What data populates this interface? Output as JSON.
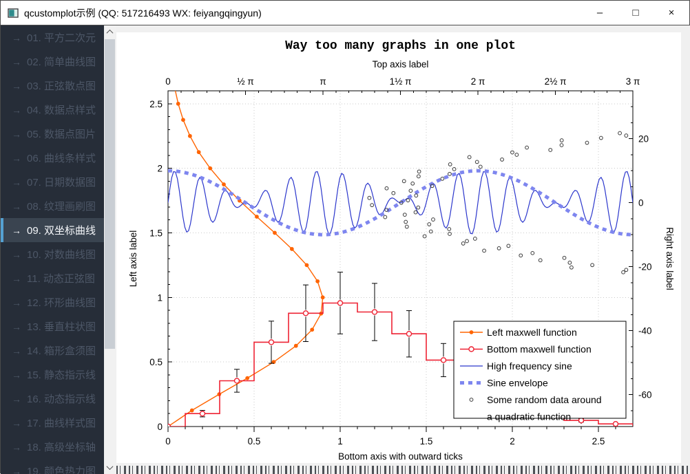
{
  "window": {
    "title": "qcustomplot示例 (QQ: 517216493 WX: feiyangqingyun)",
    "controls": {
      "minimize": "–",
      "maximize": "□",
      "close": "×"
    }
  },
  "sidebar": {
    "arrow_glyph": "→",
    "selected_index": 8,
    "items": [
      "01. 平方二次元",
      "02. 简单曲线图",
      "03. 正弦散点图",
      "04. 数据点样式",
      "05. 数据点图片",
      "06. 曲线条样式",
      "07. 日期数据图",
      "08. 纹理画刷图",
      "09. 双坐标曲线",
      "10. 对数曲线图",
      "11. 动态正弦图",
      "12. 环形曲线图",
      "13. 垂直柱状图",
      "14. 箱形盒须图",
      "15. 静态指示线",
      "16. 动态指示线",
      "17. 曲线样式图",
      "18. 高级坐标轴",
      "19. 颜色热力图"
    ]
  },
  "chart_data": {
    "type": "line",
    "title": "Way too many graphs in one plot",
    "grid": true,
    "legend_position": "bottom-right",
    "axes": {
      "bottom": {
        "label": "Bottom axis with outward ticks",
        "range": [
          0,
          2.7
        ],
        "tick_values": [
          0,
          0.5,
          1,
          1.5,
          2,
          2.5
        ],
        "tick_labels": [
          "0",
          "0.5",
          "1",
          "1.5",
          "2",
          "2.5"
        ],
        "ticks_outward": true
      },
      "left": {
        "label": "Left axis label",
        "range": [
          0,
          2.6
        ],
        "tick_values": [
          0,
          0.5,
          1,
          1.5,
          2,
          2.5
        ],
        "tick_labels": [
          "0",
          "0.5",
          "1",
          "1.5",
          "2",
          "2.5"
        ]
      },
      "top": {
        "label": "Top axis label",
        "range": [
          0,
          9.42477796
        ],
        "tick_values": [
          0,
          1.5707963,
          3.1415927,
          4.712389,
          6.2831853,
          7.8539816,
          9.424778
        ],
        "tick_labels": [
          "0",
          "½ π",
          "π",
          "1½ π",
          "2 π",
          "2½ π",
          "3 π"
        ]
      },
      "right": {
        "label": "Right axis label",
        "range": [
          -70,
          35
        ],
        "tick_values": [
          20,
          0,
          -20,
          -40,
          -60
        ],
        "tick_labels": [
          "20",
          "0",
          "-20",
          "-40",
          "-60"
        ]
      }
    },
    "series": [
      {
        "name": "Left maxwell function",
        "color": "#ff6400",
        "style": "line-with-discs",
        "key_axis": "left",
        "value_axis": "bottom",
        "note": "points are [bottom_value, left_key]",
        "points": [
          [
            0,
            0
          ],
          [
            0.1389,
            0.125
          ],
          [
            0.2973,
            0.25
          ],
          [
            0.4608,
            0.375
          ],
          [
            0.614,
            0.5
          ],
          [
            0.743,
            0.625
          ],
          [
            0.8369,
            0.75
          ],
          [
            0.8892,
            0.875
          ],
          [
            0.8987,
            1.0
          ],
          [
            0.8686,
            1.125
          ],
          [
            0.8058,
            1.25
          ],
          [
            0.7194,
            1.375
          ],
          [
            0.6199,
            1.5
          ],
          [
            0.5157,
            1.625
          ],
          [
            0.4153,
            1.75
          ],
          [
            0.324,
            1.875
          ],
          [
            0.2447,
            2.0
          ],
          [
            0.1787,
            2.125
          ],
          [
            0.1275,
            2.25
          ],
          [
            0.0879,
            2.375
          ],
          [
            0.059,
            2.5
          ],
          [
            0.0384,
            2.625
          ],
          [
            0.0243,
            2.75
          ],
          [
            0.015,
            2.875
          ],
          [
            0.009,
            3.0
          ]
        ]
      },
      {
        "name": "Bottom maxwell function",
        "color": "#ee2233",
        "style": "step-center-with-circles-and-errorbars",
        "key_axis": "bottom",
        "value_axis": "left",
        "error_factor": 0.25,
        "x": [
          0,
          0.2,
          0.4,
          0.6,
          0.8,
          1.0,
          1.2,
          1.4,
          1.6,
          1.8,
          2.0,
          2.2,
          2.4,
          2.6,
          2.8
        ],
        "y": [
          0,
          0.0999,
          0.3545,
          0.653,
          0.8774,
          0.9565,
          0.887,
          0.718,
          0.5145,
          0.3302,
          0.1905,
          0.0995,
          0.0472,
          0.0204,
          0.008
        ]
      },
      {
        "name": "High frequency sine",
        "color": "#2b36cc",
        "style": "line",
        "key_axis": "top",
        "value_axis": "right",
        "formula": "y = 10·sin(12x)·cos(x)",
        "amp": 10,
        "freq": 12,
        "x_max": 9.42477796,
        "n_points": 250
      },
      {
        "name": "Sine envelope",
        "color": "#7e86ef",
        "style": "thick-dotted-line",
        "key_axis": "top",
        "value_axis": "right",
        "formula": "y = 10·cos(x)",
        "amp": 10,
        "x_max": 9.42477796,
        "n_points": 150
      },
      {
        "name": "Some random data around a quadratic function",
        "color": "#3a3a3a",
        "style": "scatter-open-circles",
        "key_axis": "right",
        "value_axis": "top",
        "formula": "value = 4.58 + 0.01·key² + noise",
        "key_start": -24,
        "key_step": 0.75,
        "coef": 0.01,
        "offset": 4.58,
        "noise": [
          0.12,
          -0.34,
          0.45,
          -0.08,
          0.3,
          -0.5,
          0.22,
          0.05,
          -0.27,
          0.48,
          -0.15,
          0.33,
          -0.42,
          0.1,
          0.5,
          -0.22,
          0.04,
          0.38,
          -0.48,
          0.18,
          -0.06,
          0.44,
          -0.3,
          0.26,
          -0.12,
          0.52,
          -0.38,
          0.08,
          0.35,
          -0.2,
          0.47,
          -0.45,
          0.15,
          0.28,
          -0.52,
          0.4,
          -0.1,
          0.2,
          -0.35,
          0.5,
          0.02,
          -0.25,
          0.42,
          -0.18,
          0.32,
          -0.44,
          0.12,
          0.49,
          -0.3,
          0.06,
          0.37,
          -0.5,
          0.24,
          -0.08,
          0.45,
          -0.28,
          0.16,
          0.4,
          -0.4,
          0.1,
          0.3,
          -0.15,
          0.5,
          -0.05
        ]
      }
    ],
    "legend": {
      "entries": [
        "Left maxwell function",
        "Bottom maxwell function",
        "High frequency sine",
        "Sine envelope",
        "Some random data around\na quadratic function"
      ]
    }
  },
  "colors": {
    "sidebar_bg": "#262d38",
    "sidebar_text": "#4d5767",
    "selected_bg": "#3a4450",
    "selected_accent": "#55a1d2",
    "grid": "#c9c9c9",
    "axis": "#000000"
  }
}
